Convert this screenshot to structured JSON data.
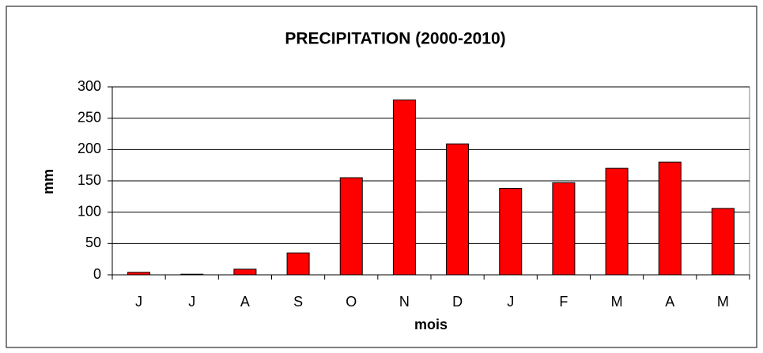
{
  "chart_data": {
    "type": "bar",
    "title": "PRECIPITATION (2000-2010)",
    "x_label": "mois",
    "y_label": "mm",
    "categories": [
      "J",
      "J",
      "A",
      "S",
      "O",
      "N",
      "D",
      "J",
      "F",
      "M",
      "A",
      "M"
    ],
    "values": [
      4,
      1,
      9,
      35,
      155,
      279,
      209,
      138,
      147,
      170,
      180,
      106
    ],
    "color": "#ff0000",
    "ylim": [
      0,
      300
    ],
    "yticks": [
      0,
      50,
      100,
      150,
      200,
      250,
      300
    ],
    "grid": true
  }
}
